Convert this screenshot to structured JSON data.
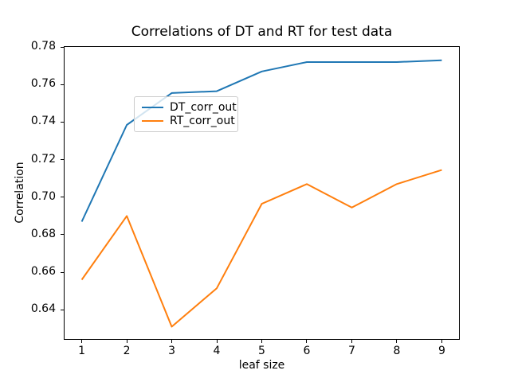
{
  "chart_data": {
    "type": "line",
    "title": "Correlations of DT and RT for test data",
    "xlabel": "leaf size",
    "ylabel": "Correlation",
    "x": [
      1,
      2,
      3,
      4,
      5,
      6,
      7,
      8,
      9
    ],
    "series": [
      {
        "name": "DT_corr_out",
        "color": "#1f77b4",
        "values": [
          0.687,
          0.7385,
          0.7555,
          0.7565,
          0.767,
          0.772,
          0.772,
          0.772,
          0.773
        ]
      },
      {
        "name": "RT_corr_out",
        "color": "#ff7f0e",
        "values": [
          0.656,
          0.69,
          0.631,
          0.6515,
          0.6965,
          0.707,
          0.6945,
          0.707,
          0.7145
        ]
      }
    ],
    "xlim": [
      0.6,
      9.4
    ],
    "ylim": [
      0.624,
      0.7805
    ],
    "xticks": [
      1,
      2,
      3,
      4,
      5,
      6,
      7,
      8,
      9
    ],
    "yticks": [
      0.64,
      0.66,
      0.68,
      0.7,
      0.72,
      0.74,
      0.76,
      0.78
    ],
    "grid": false,
    "legend_position": "upper left",
    "spine_color": "#000000",
    "background_color": "#ffffff",
    "line_width": 2
  }
}
